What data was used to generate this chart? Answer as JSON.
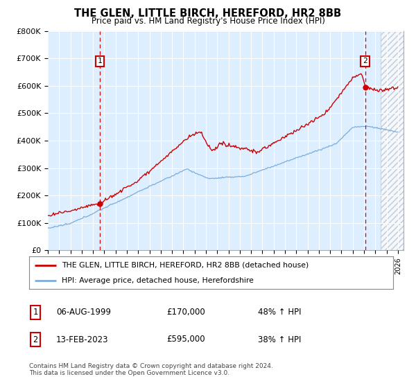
{
  "title": "THE GLEN, LITTLE BIRCH, HEREFORD, HR2 8BB",
  "subtitle": "Price paid vs. HM Land Registry's House Price Index (HPI)",
  "xlim_start": 1995.0,
  "xlim_end": 2026.5,
  "ylim": [
    0,
    800000
  ],
  "yticks": [
    0,
    100000,
    200000,
    300000,
    400000,
    500000,
    600000,
    700000,
    800000
  ],
  "ytick_labels": [
    "£0",
    "£100K",
    "£200K",
    "£300K",
    "£400K",
    "£500K",
    "£600K",
    "£700K",
    "£800K"
  ],
  "xticks": [
    1995,
    1996,
    1997,
    1998,
    1999,
    2000,
    2001,
    2002,
    2003,
    2004,
    2005,
    2006,
    2007,
    2008,
    2009,
    2010,
    2011,
    2012,
    2013,
    2014,
    2015,
    2016,
    2017,
    2018,
    2019,
    2020,
    2021,
    2022,
    2023,
    2024,
    2025,
    2026
  ],
  "red_color": "#cc0000",
  "blue_color": "#7aaddc",
  "marker1_x": 1999.6,
  "marker1_y": 170000,
  "marker2_x": 2023.1,
  "marker2_y": 595000,
  "legend_line1": "THE GLEN, LITTLE BIRCH, HEREFORD, HR2 8BB (detached house)",
  "legend_line2": "HPI: Average price, detached house, Herefordshire",
  "note1_date": "06-AUG-1999",
  "note1_price": "£170,000",
  "note1_hpi": "48% ↑ HPI",
  "note2_date": "13-FEB-2023",
  "note2_price": "£595,000",
  "note2_hpi": "38% ↑ HPI",
  "footer": "Contains HM Land Registry data © Crown copyright and database right 2024.\nThis data is licensed under the Open Government Licence v3.0.",
  "background_color": "#ddeeff",
  "grid_color": "#ffffff",
  "hatch_start": 2024.5,
  "hatch_end": 2027.0
}
